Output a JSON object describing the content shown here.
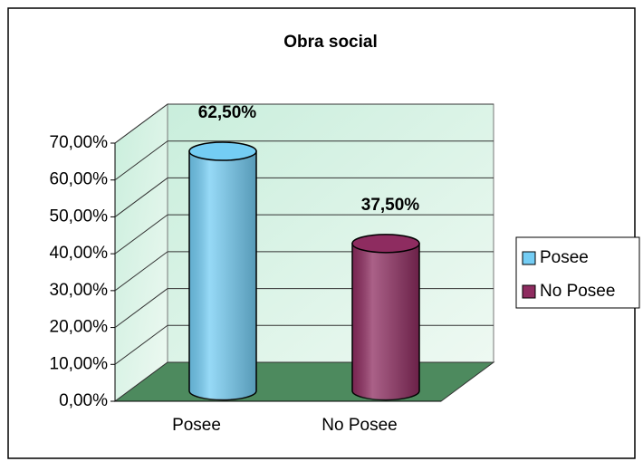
{
  "chart_data": {
    "type": "bar",
    "title": "Obra social",
    "categories": [
      "Posee",
      "No Posee"
    ],
    "values": [
      62.5,
      37.5
    ],
    "value_labels": [
      "62,50%",
      "37,50%"
    ],
    "colors": [
      "#74cdf4",
      "#8e2c60"
    ],
    "ylim": [
      0,
      70
    ],
    "yticks": [
      {
        "value": 0,
        "label": "0,00%"
      },
      {
        "value": 10,
        "label": "10,00%"
      },
      {
        "value": 20,
        "label": "20,00%"
      },
      {
        "value": 30,
        "label": "30,00%"
      },
      {
        "value": 40,
        "label": "40,00%"
      },
      {
        "value": 50,
        "label": "50,00%"
      },
      {
        "value": 60,
        "label": "60,00%"
      },
      {
        "value": 70,
        "label": "70,00%"
      }
    ],
    "grid": true,
    "legend": "right"
  }
}
